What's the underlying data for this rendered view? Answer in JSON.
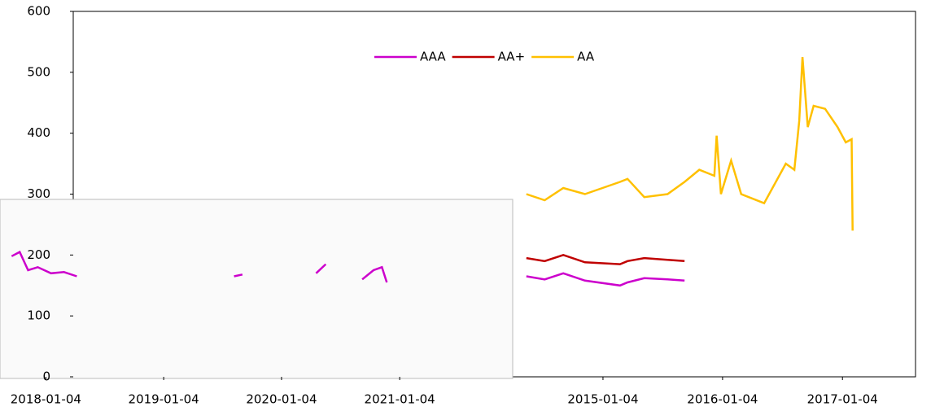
{
  "chart_data": [
    {
      "type": "line",
      "x": [
        "2017-09-20",
        "2017-10-15",
        "2017-11-10",
        "2017-12-10",
        "2018-01-20",
        "2018-03-01",
        "2018-04-10",
        null,
        "2019-08-10",
        "2019-09-05",
        null,
        "2020-04-20",
        "2020-05-20",
        null,
        "2020-09-10",
        "2020-10-15",
        "2020-11-10",
        "2020-11-25"
      ],
      "series": [
        {
          "color": "#cc00cc",
          "values": [
            198,
            205,
            175,
            180,
            170,
            172,
            165,
            null,
            165,
            168,
            null,
            170,
            185,
            null,
            160,
            175,
            180,
            155
          ]
        }
      ],
      "xlim": [
        "2017-08-15",
        "2021-12-20"
      ],
      "xticks": [
        "2018-01-04",
        "2019-01-04",
        "2020-01-04",
        "2021-01-04"
      ],
      "ylim": [
        0,
        600
      ]
    },
    {
      "type": "line",
      "x": [
        "2014-05-15",
        "2014-07-10",
        "2014-09-05",
        "2014-11-10",
        "2015-02-25",
        "2015-03-20",
        "2015-05-10",
        "2015-07-20",
        "2015-09-10",
        "2015-10-25",
        "2015-12-10",
        "2015-12-17",
        "2015-12-30",
        "2016-01-30",
        "2016-03-01",
        "2016-05-10",
        "2016-07-15",
        "2016-08-10",
        "2016-08-25",
        "2016-09-04",
        "2016-09-20",
        "2016-10-08",
        "2016-11-12",
        "2016-12-20",
        "2017-01-14",
        "2017-02-01",
        "2017-02-04"
      ],
      "series": [
        {
          "name": "AAA",
          "color": "#cc00cc",
          "values": [
            165,
            160,
            170,
            158,
            150,
            155,
            162,
            160,
            158,
            null,
            null,
            null,
            null,
            null,
            null,
            null,
            null,
            null,
            null,
            null,
            null,
            null,
            null,
            null,
            null,
            null,
            null
          ]
        },
        {
          "name": "AA+",
          "color": "#c00000",
          "values": [
            195,
            190,
            200,
            188,
            185,
            190,
            195,
            192,
            190,
            null,
            null,
            null,
            null,
            null,
            null,
            null,
            null,
            null,
            null,
            null,
            null,
            null,
            null,
            null,
            null,
            null,
            null
          ]
        },
        {
          "name": "AA",
          "color": "#ffc000",
          "values": [
            300,
            290,
            310,
            300,
            320,
            325,
            295,
            300,
            320,
            340,
            330,
            396,
            300,
            355,
            300,
            285,
            350,
            340,
            420,
            525,
            410,
            445,
            440,
            410,
            385,
            390,
            240
          ]
        }
      ],
      "xlim": [
        "2010-08-01",
        "2017-08-15"
      ],
      "xticks": [
        "2015-01-04",
        "2016-01-04",
        "2017-01-04"
      ],
      "ylim": [
        0,
        600
      ],
      "yticks": [
        0,
        100,
        200,
        300,
        400,
        500,
        600
      ],
      "legend": "top"
    }
  ]
}
